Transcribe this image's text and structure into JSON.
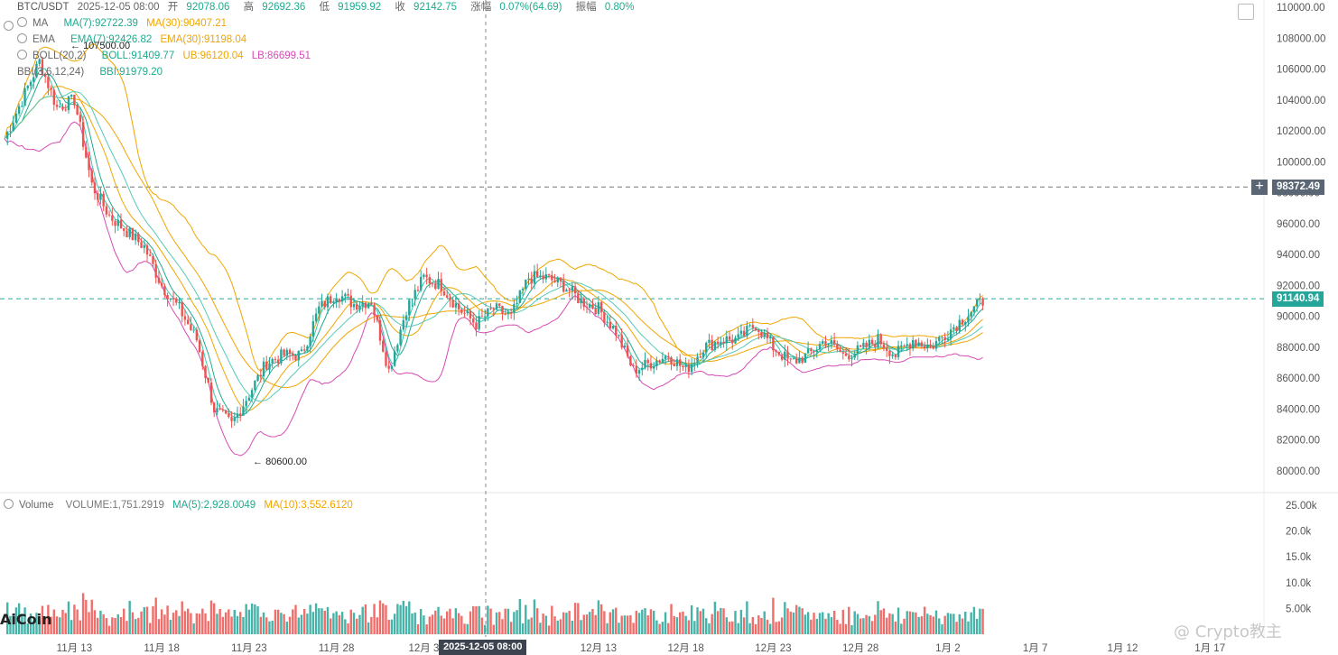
{
  "header": {
    "symbol": "BTC/USDT",
    "datetime": "2025-12-05 08:00",
    "open_label": "开",
    "open": "92078.06",
    "high_label": "高",
    "high": "92692.36",
    "low_label": "低",
    "low": "91959.92",
    "close_label": "收",
    "close": "92142.75",
    "change_label": "涨幅",
    "change": "0.07%(64.69)",
    "amplitude_label": "振幅",
    "amplitude": "0.80%"
  },
  "indicators": {
    "ma": {
      "name": "MA",
      "ma7": "MA(7):92722.39",
      "ma30": "MA(30):90407.21"
    },
    "ema": {
      "name": "EMA",
      "ema7": "EMA(7):92426.82",
      "ema30": "EMA(30):91198.04"
    },
    "boll": {
      "name": "BOLL(20,2)",
      "boll": "BOLL:91409.77",
      "ub": "UB:96120.04",
      "lb": "LB:86699.51"
    },
    "bbi": {
      "name": "BBI(3,6,12,24)",
      "bbi": "BBI:91979.20"
    }
  },
  "volume_header": {
    "name": "Volume",
    "volume": "VOLUME:1,751.2919",
    "ma5": "MA(5):2,928.0049",
    "ma10": "MA(10):3,552.6120"
  },
  "price_tags": {
    "crosshair": "98372.49",
    "last": "91140.94"
  },
  "annotations": {
    "high": "107500.00",
    "low": "80600.00",
    "crosshair_time": "2025-12-05 08:00"
  },
  "watermarks": {
    "logo": "AiCoin",
    "credit": "@ Crypto教主"
  },
  "colors": {
    "up": "#26a69a",
    "down": "#ef5350",
    "ma_short": "#1faa8e",
    "ma_long": "#f0a500",
    "lb": "#d64bb5"
  },
  "chart_data": {
    "type": "candlestick",
    "x_tick_labels": [
      "11月 13",
      "11月 18",
      "11月 23",
      "11月 28",
      "12月 3",
      "12月 8",
      "12月 13",
      "12月 18",
      "12月 23",
      "12月 28",
      "1月 2",
      "1月 7",
      "1月 12",
      "1月 17"
    ],
    "price_axis": {
      "min": 80000,
      "max": 110000,
      "ticks": [
        80000,
        82000,
        84000,
        86000,
        88000,
        90000,
        92000,
        94000,
        96000,
        98000,
        100000,
        102000,
        104000,
        106000,
        108000,
        110000
      ]
    },
    "volume_axis": {
      "min": 0,
      "max": 25000,
      "tick_labels": [
        "5.00k",
        "10.0k",
        "15.0k",
        "20.0k",
        "25.00k"
      ]
    },
    "trend": [
      [
        "11月 9",
        101500
      ],
      [
        "11月 10",
        104000
      ],
      [
        "11月 11",
        106500
      ],
      [
        "11月 12",
        103500
      ],
      [
        "11月 13",
        104000
      ],
      [
        "11月 14",
        98500
      ],
      [
        "11月 15",
        96500
      ],
      [
        "11月 16",
        95500
      ],
      [
        "11月 17",
        94500
      ],
      [
        "11月 18",
        92000
      ],
      [
        "11月 19",
        90500
      ],
      [
        "11月 20",
        88500
      ],
      [
        "11月 21",
        84000
      ],
      [
        "11月 22",
        83000
      ],
      [
        "11月 23",
        85000
      ],
      [
        "11月 24",
        87000
      ],
      [
        "11月 25",
        87500
      ],
      [
        "11月 26",
        87500
      ],
      [
        "11月 27",
        90500
      ],
      [
        "11月 28",
        91500
      ],
      [
        "11月 29",
        90800
      ],
      [
        "11月 30",
        91000
      ],
      [
        "12月 1",
        86500
      ],
      [
        "12月 2",
        90500
      ],
      [
        "12月 3",
        92500
      ],
      [
        "12月 4",
        92000
      ],
      [
        "12月 5",
        90500
      ],
      [
        "12月 6",
        89500
      ],
      [
        "12月 7",
        90500
      ],
      [
        "12月 8",
        90000
      ],
      [
        "12月 9",
        92500
      ],
      [
        "12月 10",
        92500
      ],
      [
        "12月 11",
        92000
      ],
      [
        "12月 12",
        91000
      ],
      [
        "12月 13",
        90500
      ],
      [
        "12月 14",
        89000
      ],
      [
        "12月 15",
        86500
      ],
      [
        "12月 16",
        87000
      ],
      [
        "12月 17",
        87500
      ],
      [
        "12月 18",
        86500
      ],
      [
        "12月 19",
        88000
      ],
      [
        "12月 20",
        88500
      ],
      [
        "12月 21",
        88500
      ],
      [
        "12月 22",
        89500
      ],
      [
        "12月 23",
        88000
      ],
      [
        "12月 24",
        87000
      ],
      [
        "12月 25",
        87500
      ],
      [
        "12月 26",
        88500
      ],
      [
        "12月 27",
        87500
      ],
      [
        "12月 28",
        87800
      ],
      [
        "12月 29",
        88500
      ],
      [
        "12月 30",
        87500
      ],
      [
        "12月 31",
        88500
      ],
      [
        "1月 1",
        88000
      ],
      [
        "1月 2",
        89000
      ],
      [
        "1月 3",
        90000
      ],
      [
        "1月 4",
        91000
      ]
    ],
    "extremes": {
      "high": 107500,
      "low": 80600
    }
  }
}
